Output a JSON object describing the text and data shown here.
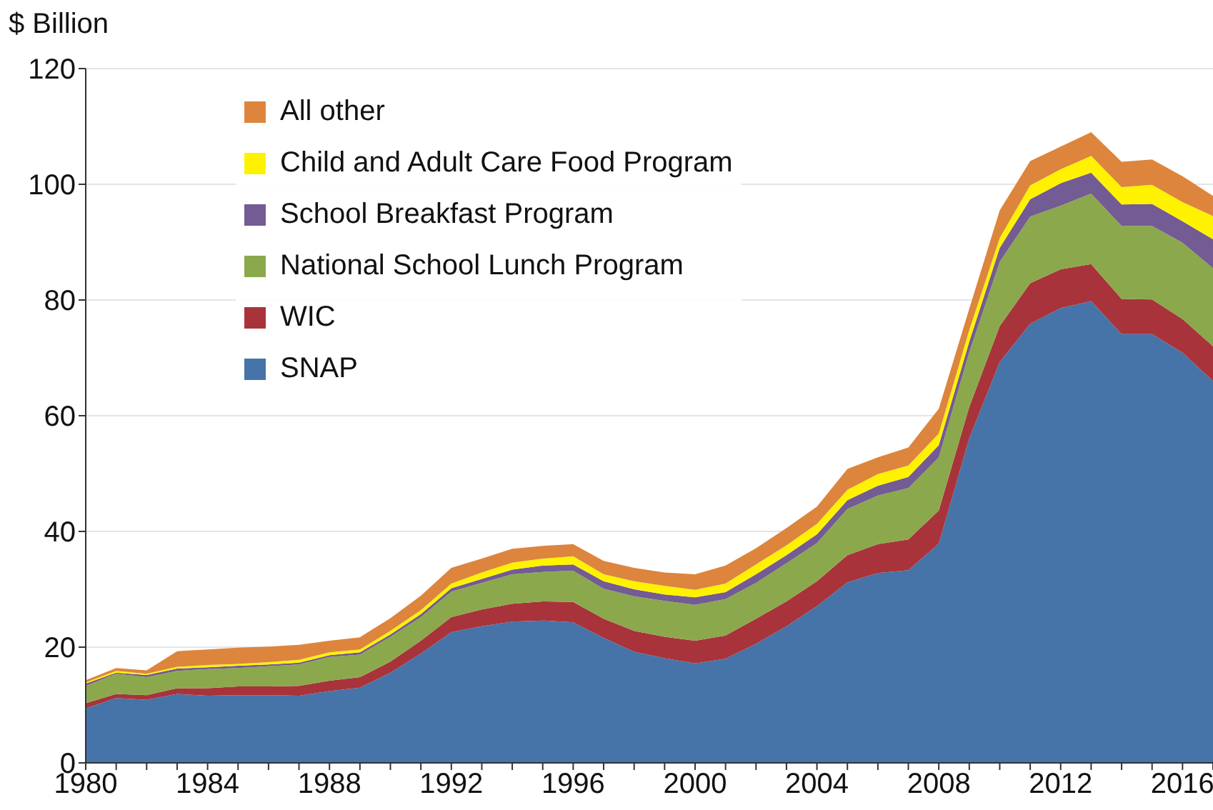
{
  "chart_data": {
    "type": "area",
    "stacked": true,
    "ylabel": "$ Billion",
    "x": [
      1980,
      1981,
      1982,
      1983,
      1984,
      1985,
      1986,
      1987,
      1988,
      1989,
      1990,
      1991,
      1992,
      1993,
      1994,
      1995,
      1996,
      1997,
      1998,
      1999,
      2000,
      2001,
      2002,
      2003,
      2004,
      2005,
      2006,
      2007,
      2008,
      2009,
      2010,
      2011,
      2012,
      2013,
      2014,
      2015,
      2016,
      2017
    ],
    "xlim": [
      1980,
      2017
    ],
    "xticks": [
      1980,
      {
        "value": 1981,
        "label": null
      },
      {
        "value": 1982,
        "label": null
      },
      {
        "value": 1983,
        "label": null
      },
      1984,
      {
        "value": 1985,
        "label": null
      },
      {
        "value": 1986,
        "label": null
      },
      {
        "value": 1987,
        "label": null
      },
      1988,
      {
        "value": 1989,
        "label": null
      },
      {
        "value": 1990,
        "label": null
      },
      {
        "value": 1991,
        "label": null
      },
      1992,
      {
        "value": 1993,
        "label": null
      },
      {
        "value": 1994,
        "label": null
      },
      {
        "value": 1995,
        "label": null
      },
      1996,
      {
        "value": 1997,
        "label": null
      },
      {
        "value": 1998,
        "label": null
      },
      {
        "value": 1999,
        "label": null
      },
      2000,
      {
        "value": 2001,
        "label": null
      },
      {
        "value": 2002,
        "label": null
      },
      {
        "value": 2003,
        "label": null
      },
      2004,
      {
        "value": 2005,
        "label": null
      },
      {
        "value": 2006,
        "label": null
      },
      {
        "value": 2007,
        "label": null
      },
      2008,
      {
        "value": 2009,
        "label": null
      },
      {
        "value": 2010,
        "label": null
      },
      {
        "value": 2011,
        "label": null
      },
      2012,
      {
        "value": 2013,
        "label": null
      },
      {
        "value": 2014,
        "label": null
      },
      {
        "value": 2015,
        "label": null
      },
      2016,
      {
        "value": 2017,
        "label": null
      }
    ],
    "ylim": [
      0,
      120
    ],
    "yticks": [
      0,
      20,
      40,
      60,
      80,
      100,
      120
    ],
    "grid": "y",
    "legend": "top left",
    "series": [
      {
        "name": "SNAP",
        "color": "#4674a8",
        "values": [
          9.4,
          11.2,
          10.9,
          11.9,
          11.6,
          11.7,
          11.7,
          11.6,
          12.4,
          13.0,
          15.6,
          18.9,
          22.6,
          23.6,
          24.4,
          24.6,
          24.3,
          21.6,
          19.2,
          18.1,
          17.2,
          18.0,
          20.6,
          23.6,
          27.1,
          31.2,
          32.8,
          33.3,
          37.9,
          56.1,
          69.3,
          75.9,
          78.6,
          79.8,
          74.1,
          74.1,
          70.9,
          66.0
        ]
      },
      {
        "name": "WIC",
        "color": "#a8333a",
        "values": [
          0.9,
          0.7,
          0.8,
          1.0,
          1.3,
          1.5,
          1.5,
          1.7,
          1.8,
          1.8,
          1.9,
          2.2,
          2.6,
          2.9,
          3.1,
          3.3,
          3.5,
          3.3,
          3.6,
          3.7,
          3.9,
          4.0,
          4.3,
          4.3,
          4.3,
          4.7,
          5.0,
          5.3,
          5.7,
          5.4,
          6.2,
          7.0,
          6.7,
          6.4,
          6.1,
          6.0,
          5.8,
          6.0
        ]
      },
      {
        "name": "National School Lunch Program",
        "color": "#8ba84d",
        "values": [
          3.0,
          3.5,
          3.1,
          3.0,
          3.3,
          3.2,
          3.5,
          3.7,
          4.1,
          3.9,
          4.3,
          4.1,
          4.4,
          4.6,
          5.1,
          5.1,
          5.4,
          5.2,
          6.0,
          6.2,
          6.2,
          6.3,
          6.2,
          6.6,
          6.6,
          8.0,
          8.4,
          8.9,
          9.2,
          9.5,
          11.1,
          11.5,
          11.0,
          12.2,
          12.6,
          12.7,
          13.2,
          13.5
        ]
      },
      {
        "name": "School Breakfast Program",
        "color": "#735b93",
        "values": [
          0.4,
          0.2,
          0.4,
          0.4,
          0.3,
          0.4,
          0.3,
          0.3,
          0.3,
          0.4,
          0.4,
          0.5,
          0.6,
          0.7,
          0.8,
          1.1,
          1.1,
          1.3,
          1.2,
          1.1,
          1.3,
          1.2,
          1.5,
          1.4,
          1.5,
          1.5,
          1.7,
          1.9,
          2.1,
          1.8,
          2.4,
          3.0,
          3.9,
          3.6,
          3.7,
          3.8,
          3.7,
          5.0
        ]
      },
      {
        "name": "Child and Adult Care Food Program",
        "color": "#fff200",
        "values": [
          0.2,
          0.3,
          0.2,
          0.3,
          0.4,
          0.3,
          0.4,
          0.5,
          0.5,
          0.5,
          0.6,
          0.7,
          0.8,
          1.1,
          1.2,
          1.2,
          1.4,
          1.2,
          1.4,
          1.5,
          1.3,
          1.5,
          1.7,
          1.7,
          1.8,
          1.8,
          2.0,
          2.0,
          2.0,
          2.0,
          1.7,
          2.4,
          2.4,
          2.9,
          3.0,
          3.3,
          3.3,
          4.0
        ]
      },
      {
        "name": "All other",
        "color": "#dd853d",
        "values": [
          0.4,
          0.5,
          0.6,
          2.7,
          2.7,
          2.8,
          2.7,
          2.6,
          2.0,
          2.1,
          2.2,
          2.5,
          2.7,
          2.4,
          2.4,
          2.2,
          2.1,
          2.3,
          2.3,
          2.3,
          2.7,
          3.1,
          2.8,
          3.0,
          3.0,
          3.6,
          2.9,
          3.1,
          4.3,
          3.7,
          4.8,
          4.2,
          3.9,
          4.1,
          4.4,
          4.4,
          4.5,
          3.5
        ]
      }
    ]
  }
}
